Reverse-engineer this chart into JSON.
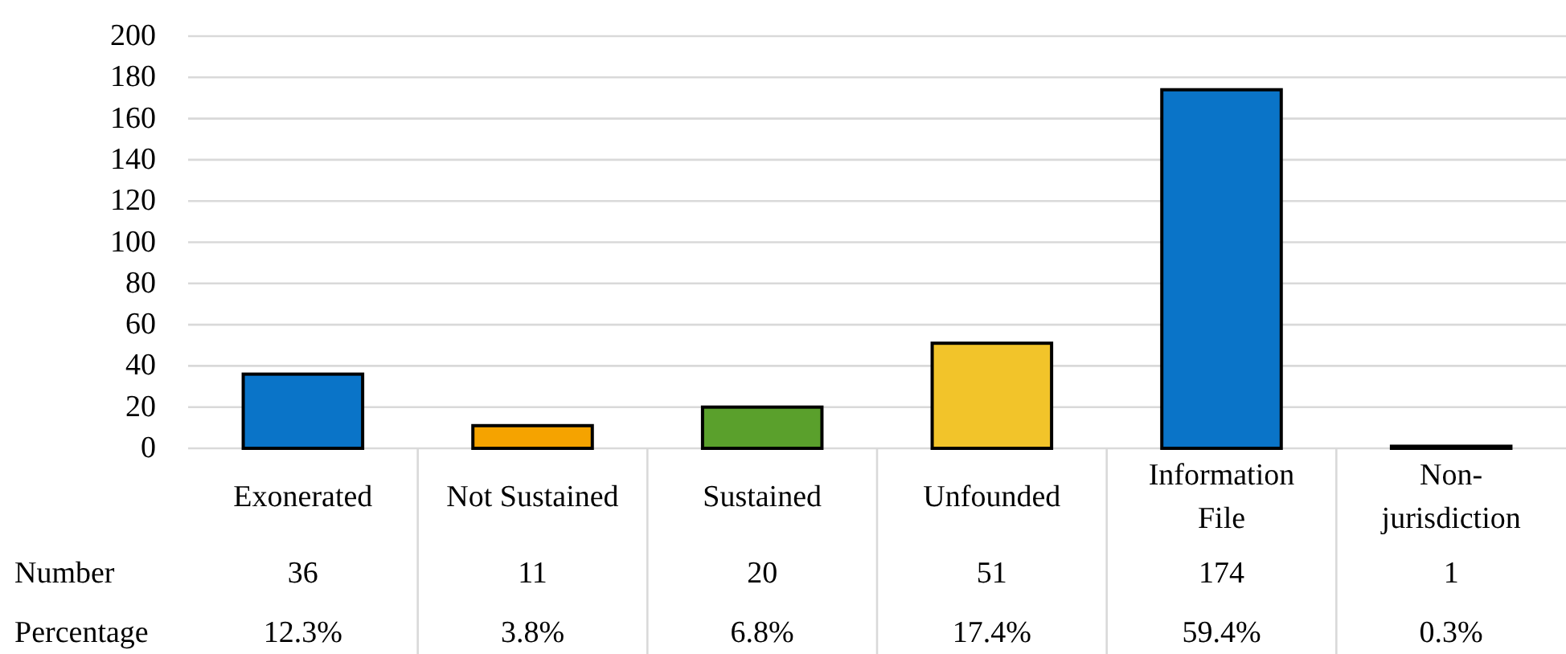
{
  "chart_data": {
    "type": "bar",
    "categories": [
      "Exonerated",
      "Not Sustained",
      "Sustained",
      "Unfounded",
      "Information File",
      "Non-jurisdiction"
    ],
    "values": [
      36,
      11,
      20,
      51,
      174,
      1
    ],
    "colors": [
      "#0a74c8",
      "#f5a300",
      "#5aa02c",
      "#f2c42a",
      "#0a74c8",
      "#7f7f7f"
    ],
    "ylim": [
      0,
      200
    ],
    "yticks": [
      0,
      20,
      40,
      60,
      80,
      100,
      120,
      140,
      160,
      180,
      200
    ],
    "grid": "y",
    "data_labels": true,
    "annotations": [
      "Number",
      "Percentage",
      "12.3%",
      "3.8%",
      "6.8%",
      "17.4%",
      "59.4%",
      "0.3%"
    ]
  }
}
